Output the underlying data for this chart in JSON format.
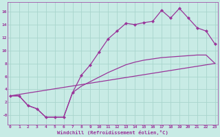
{
  "xlabel": "Windchill (Refroidissement éolien,°C)",
  "background_color": "#c8ebe5",
  "grid_color": "#a8d5cc",
  "line_color": "#993399",
  "xlim": [
    -0.3,
    23.3
  ],
  "ylim": [
    -1.5,
    17.5
  ],
  "xticks": [
    0,
    1,
    2,
    3,
    4,
    5,
    6,
    7,
    8,
    9,
    10,
    11,
    12,
    13,
    14,
    15,
    16,
    17,
    18,
    19,
    20,
    21,
    22,
    23
  ],
  "yticks": [
    0,
    2,
    4,
    6,
    8,
    10,
    12,
    14,
    16
  ],
  "ytick_labels": [
    "-0",
    "2",
    "4",
    "6",
    "8",
    "10",
    "12",
    "14",
    "16"
  ],
  "line1_x": [
    0,
    1,
    2,
    3,
    4,
    5,
    6,
    7,
    8,
    9,
    10,
    11,
    12,
    13,
    14,
    15,
    16,
    17,
    18,
    19,
    20,
    21,
    22,
    23
  ],
  "line1_y": [
    3.0,
    3.0,
    1.5,
    1.0,
    -0.3,
    -0.3,
    -0.3,
    3.5,
    6.2,
    7.8,
    9.8,
    11.8,
    13.0,
    14.2,
    14.0,
    14.3,
    14.5,
    16.2,
    15.0,
    16.5,
    15.0,
    13.5,
    13.0,
    11.0
  ],
  "line2_x": [
    0,
    23
  ],
  "line2_y": [
    3.0,
    8.0
  ],
  "line3_x": [
    0,
    1,
    2,
    3,
    4,
    5,
    6,
    7,
    8,
    9,
    10,
    11,
    12,
    13,
    14,
    15,
    16,
    17,
    18,
    19,
    20,
    21,
    22,
    23
  ],
  "line3_y": [
    3.0,
    3.0,
    1.5,
    1.0,
    -0.3,
    -0.3,
    -0.3,
    3.5,
    4.5,
    5.2,
    5.9,
    6.6,
    7.2,
    7.8,
    8.2,
    8.5,
    8.7,
    8.9,
    9.0,
    9.1,
    9.2,
    9.3,
    9.3,
    8.0
  ]
}
